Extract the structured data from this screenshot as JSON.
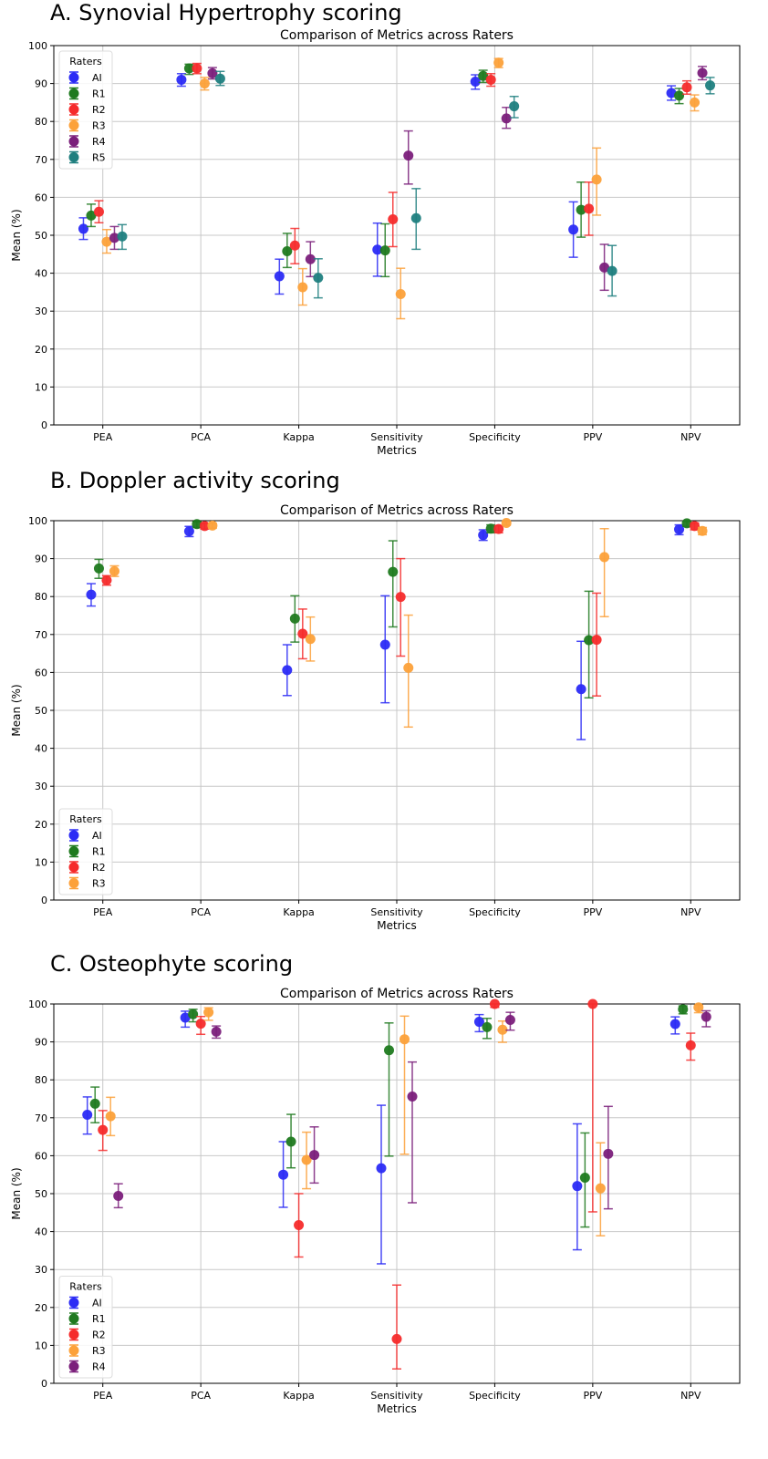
{
  "chart_data": [
    {
      "type": "scatter",
      "panel_title": "A. Synovial Hypertrophy scoring",
      "title": "Comparison of Metrics across Raters",
      "xlabel": "Metrics",
      "ylabel": "Mean (%)",
      "ylim": [
        0,
        100
      ],
      "yticks": [
        0,
        10,
        20,
        30,
        40,
        50,
        60,
        70,
        80,
        90,
        100
      ],
      "grid": true,
      "legend": {
        "title": "Raters",
        "position": "top-left"
      },
      "categories": [
        "PEA",
        "PCA",
        "Kappa",
        "Sensitivity",
        "Specificity",
        "PPV",
        "NPV"
      ],
      "series": [
        {
          "name": "AI",
          "color": "#2b2bf5",
          "values": [
            51.7,
            91.0,
            39.2,
            46.2,
            90.5,
            51.5,
            87.5
          ],
          "lower": [
            48.9,
            89.3,
            34.5,
            39.2,
            88.5,
            44.2,
            85.6
          ],
          "upper": [
            54.6,
            92.6,
            43.7,
            53.2,
            92.3,
            58.8,
            89.4
          ]
        },
        {
          "name": "R1",
          "color": "#1f7a1f",
          "values": [
            55.2,
            94.0,
            45.8,
            46.0,
            92.0,
            56.7,
            86.8
          ],
          "lower": [
            52.3,
            92.4,
            41.5,
            39.1,
            90.3,
            49.5,
            84.7
          ],
          "upper": [
            58.2,
            95.1,
            50.5,
            53.0,
            93.5,
            64.0,
            88.7
          ]
        },
        {
          "name": "R2",
          "color": "#f52b2b",
          "values": [
            56.2,
            94.0,
            47.3,
            54.2,
            91.0,
            57.0,
            89.0
          ],
          "lower": [
            53.3,
            92.6,
            42.5,
            47.0,
            89.3,
            50.0,
            87.2
          ],
          "upper": [
            59.1,
            95.3,
            51.8,
            61.3,
            92.6,
            64.0,
            90.7
          ]
        },
        {
          "name": "R3",
          "color": "#fca13a",
          "values": [
            48.3,
            90.0,
            36.3,
            34.5,
            95.5,
            64.7,
            85.0
          ],
          "lower": [
            45.3,
            88.3,
            31.6,
            28.0,
            94.2,
            55.3,
            82.8
          ],
          "upper": [
            51.5,
            91.6,
            41.2,
            41.3,
            96.6,
            73.0,
            87.0
          ]
        },
        {
          "name": "R4",
          "color": "#7b1f7b",
          "values": [
            49.3,
            92.7,
            43.7,
            71.0,
            80.8,
            41.5,
            92.8
          ],
          "lower": [
            46.3,
            91.2,
            39.1,
            63.5,
            78.2,
            35.5,
            91.0
          ],
          "upper": [
            52.3,
            94.2,
            48.3,
            77.5,
            83.7,
            47.6,
            94.5
          ]
        },
        {
          "name": "R5",
          "color": "#1f7f7f",
          "values": [
            49.7,
            91.3,
            38.8,
            54.5,
            84.0,
            40.6,
            89.5
          ],
          "lower": [
            46.3,
            89.5,
            33.5,
            46.3,
            81.0,
            34.0,
            87.3
          ],
          "upper": [
            52.8,
            93.2,
            43.8,
            62.3,
            86.6,
            47.3,
            91.6
          ]
        }
      ]
    },
    {
      "type": "scatter",
      "panel_title": "B. Doppler activity scoring",
      "title": "Comparison of Metrics across Raters",
      "xlabel": "Metrics",
      "ylabel": "Mean (%)",
      "ylim": [
        0,
        100
      ],
      "yticks": [
        0,
        10,
        20,
        30,
        40,
        50,
        60,
        70,
        80,
        90,
        100
      ],
      "grid": true,
      "legend": {
        "title": "Raters",
        "position": "bottom-left"
      },
      "categories": [
        "PEA",
        "PCA",
        "Kappa",
        "Sensitivity",
        "Specificity",
        "PPV",
        "NPV"
      ],
      "series": [
        {
          "name": "AI",
          "color": "#2b2bf5",
          "values": [
            80.5,
            97.2,
            60.6,
            67.3,
            96.2,
            55.6,
            97.7
          ],
          "lower": [
            77.5,
            95.8,
            53.9,
            52.0,
            94.8,
            42.3,
            96.3
          ],
          "upper": [
            83.4,
            98.5,
            67.3,
            80.2,
            97.6,
            68.2,
            98.9
          ]
        },
        {
          "name": "R1",
          "color": "#1f7a1f",
          "values": [
            87.4,
            99.1,
            74.2,
            86.5,
            97.9,
            68.5,
            99.3
          ],
          "lower": [
            84.8,
            98.2,
            68.0,
            72.0,
            96.8,
            53.3,
            98.5
          ],
          "upper": [
            89.8,
            99.7,
            80.2,
            94.7,
            98.9,
            81.4,
            99.8
          ]
        },
        {
          "name": "R2",
          "color": "#f52b2b",
          "values": [
            84.3,
            98.6,
            70.2,
            79.9,
            97.8,
            68.6,
            98.6
          ],
          "lower": [
            83.0,
            97.8,
            63.6,
            64.3,
            96.8,
            53.8,
            97.6
          ],
          "upper": [
            85.5,
            99.3,
            76.7,
            90.0,
            98.7,
            80.9,
            99.4
          ]
        },
        {
          "name": "R3",
          "color": "#fca13a",
          "values": [
            86.7,
            98.7,
            68.8,
            61.2,
            99.4,
            90.4,
            97.3
          ],
          "lower": [
            85.3,
            98.0,
            63.0,
            45.6,
            98.8,
            74.7,
            96.3
          ],
          "upper": [
            88.1,
            99.3,
            74.6,
            75.1,
            99.8,
            97.9,
            98.2
          ]
        }
      ]
    },
    {
      "type": "scatter",
      "panel_title": "C. Osteophyte scoring",
      "title": "Comparison of Metrics across Raters",
      "xlabel": "Metrics",
      "ylabel": "Mean (%)",
      "ylim": [
        0,
        100
      ],
      "yticks": [
        0,
        10,
        20,
        30,
        40,
        50,
        60,
        70,
        80,
        90,
        100
      ],
      "grid": true,
      "legend": {
        "title": "Raters",
        "position": "bottom-left"
      },
      "categories": [
        "PEA",
        "PCA",
        "Kappa",
        "Sensitivity",
        "Specificity",
        "PPV",
        "NPV"
      ],
      "series": [
        {
          "name": "AI",
          "color": "#2b2bf5",
          "values": [
            70.8,
            96.4,
            55.0,
            56.7,
            95.3,
            52.0,
            94.7
          ],
          "lower": [
            65.7,
            93.9,
            46.4,
            31.5,
            92.7,
            35.2,
            92.1
          ],
          "upper": [
            75.5,
            98.1,
            63.7,
            73.3,
            97.2,
            68.4,
            96.6
          ]
        },
        {
          "name": "R1",
          "color": "#1f7a1f",
          "values": [
            73.7,
            97.3,
            63.7,
            87.8,
            93.9,
            54.2,
            98.6
          ],
          "lower": [
            68.7,
            95.3,
            56.8,
            59.9,
            90.9,
            41.2,
            97.4
          ],
          "upper": [
            78.1,
            98.6,
            70.9,
            95.0,
            96.2,
            66.0,
            99.5
          ]
        },
        {
          "name": "R2",
          "color": "#f52b2b",
          "values": [
            66.8,
            94.8,
            41.7,
            11.7,
            100.0,
            100.0,
            89.1
          ],
          "lower": [
            61.4,
            92.0,
            33.3,
            3.8,
            99.1,
            45.2,
            85.2
          ],
          "upper": [
            71.9,
            96.7,
            50.0,
            25.9,
            100.0,
            100.0,
            92.3
          ]
        },
        {
          "name": "R3",
          "color": "#fca13a",
          "values": [
            70.4,
            97.8,
            58.9,
            90.7,
            93.2,
            51.4,
            99.1
          ],
          "lower": [
            65.3,
            95.7,
            51.3,
            60.4,
            89.9,
            38.9,
            97.7
          ],
          "upper": [
            75.4,
            99.0,
            66.2,
            96.8,
            95.5,
            63.4,
            99.7
          ]
        },
        {
          "name": "R4",
          "color": "#7b1f7b",
          "values": [
            49.4,
            92.7,
            60.2,
            75.6,
            95.8,
            60.5,
            96.6
          ],
          "lower": [
            46.3,
            91.0,
            52.8,
            47.6,
            93.1,
            46.0,
            94.0
          ],
          "upper": [
            52.6,
            94.2,
            67.6,
            84.7,
            97.8,
            73.0,
            98.2
          ]
        }
      ]
    }
  ]
}
